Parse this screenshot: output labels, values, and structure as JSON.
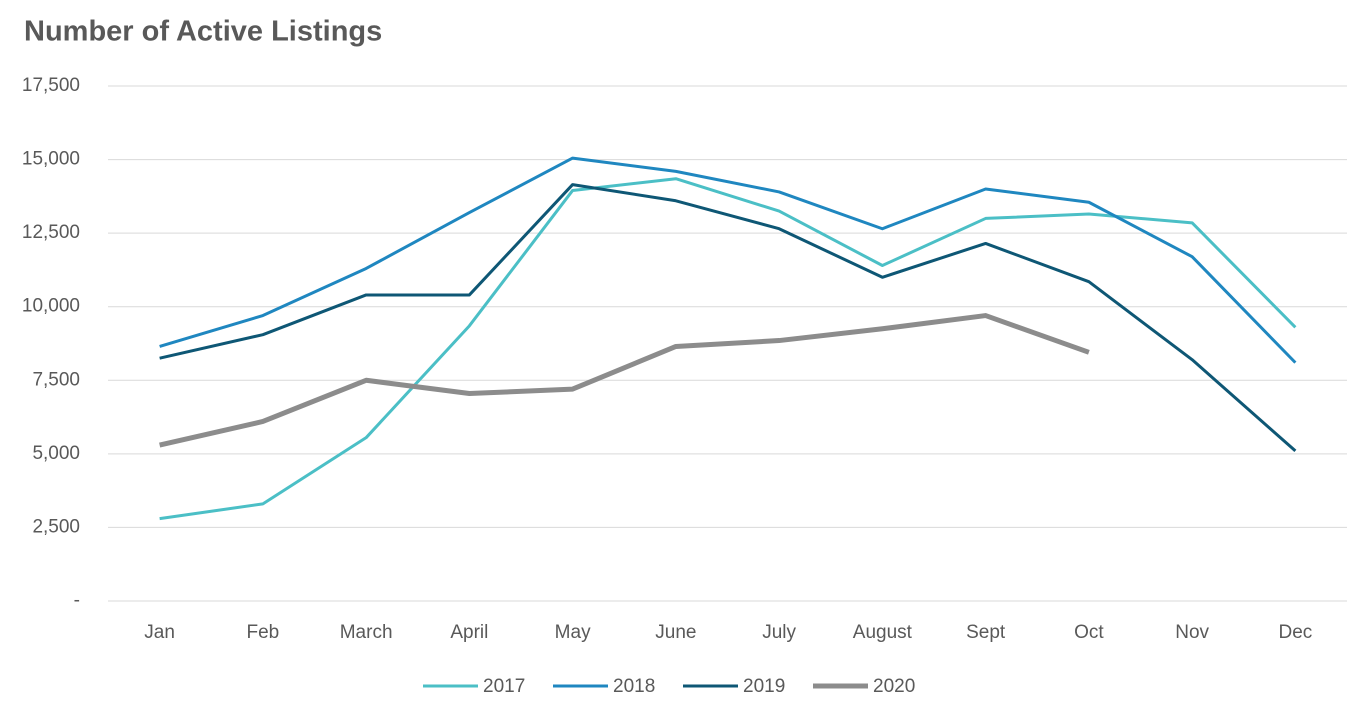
{
  "chart_data": {
    "type": "line",
    "title": "Number of Active Listings",
    "categories": [
      "Jan",
      "Feb",
      "March",
      "April",
      "May",
      "June",
      "July",
      "August",
      "Sept",
      "Oct",
      "Nov",
      "Dec"
    ],
    "series": [
      {
        "name": "2017",
        "color": "#4bbfc6",
        "values": [
          2800,
          3300,
          5550,
          9350,
          13950,
          14350,
          13250,
          11400,
          13000,
          13150,
          12850,
          9300
        ]
      },
      {
        "name": "2018",
        "color": "#1f87c0",
        "values": [
          8650,
          9700,
          11300,
          13200,
          15050,
          14600,
          13900,
          12650,
          14000,
          13550,
          11700,
          8100
        ]
      },
      {
        "name": "2019",
        "color": "#0e5775",
        "values": [
          8250,
          9050,
          10400,
          10400,
          14150,
          13600,
          12650,
          11000,
          12150,
          10850,
          8200,
          5100
        ]
      },
      {
        "name": "2020",
        "color": "#8c8c8c",
        "values": [
          5300,
          6100,
          7500,
          7050,
          7200,
          8650,
          8850,
          9250,
          9700,
          8450,
          null,
          null
        ]
      }
    ],
    "ylim": [
      0,
      17500
    ],
    "yticks": [
      {
        "value": 0,
        "label": "-"
      },
      {
        "value": 2500,
        "label": "2,500"
      },
      {
        "value": 5000,
        "label": "5,000"
      },
      {
        "value": 7500,
        "label": "7,500"
      },
      {
        "value": 10000,
        "label": "10,000"
      },
      {
        "value": 12500,
        "label": "12,500"
      },
      {
        "value": 15000,
        "label": "15,000"
      },
      {
        "value": 17500,
        "label": "17,500"
      }
    ],
    "grid": true,
    "legend": "bottom"
  }
}
